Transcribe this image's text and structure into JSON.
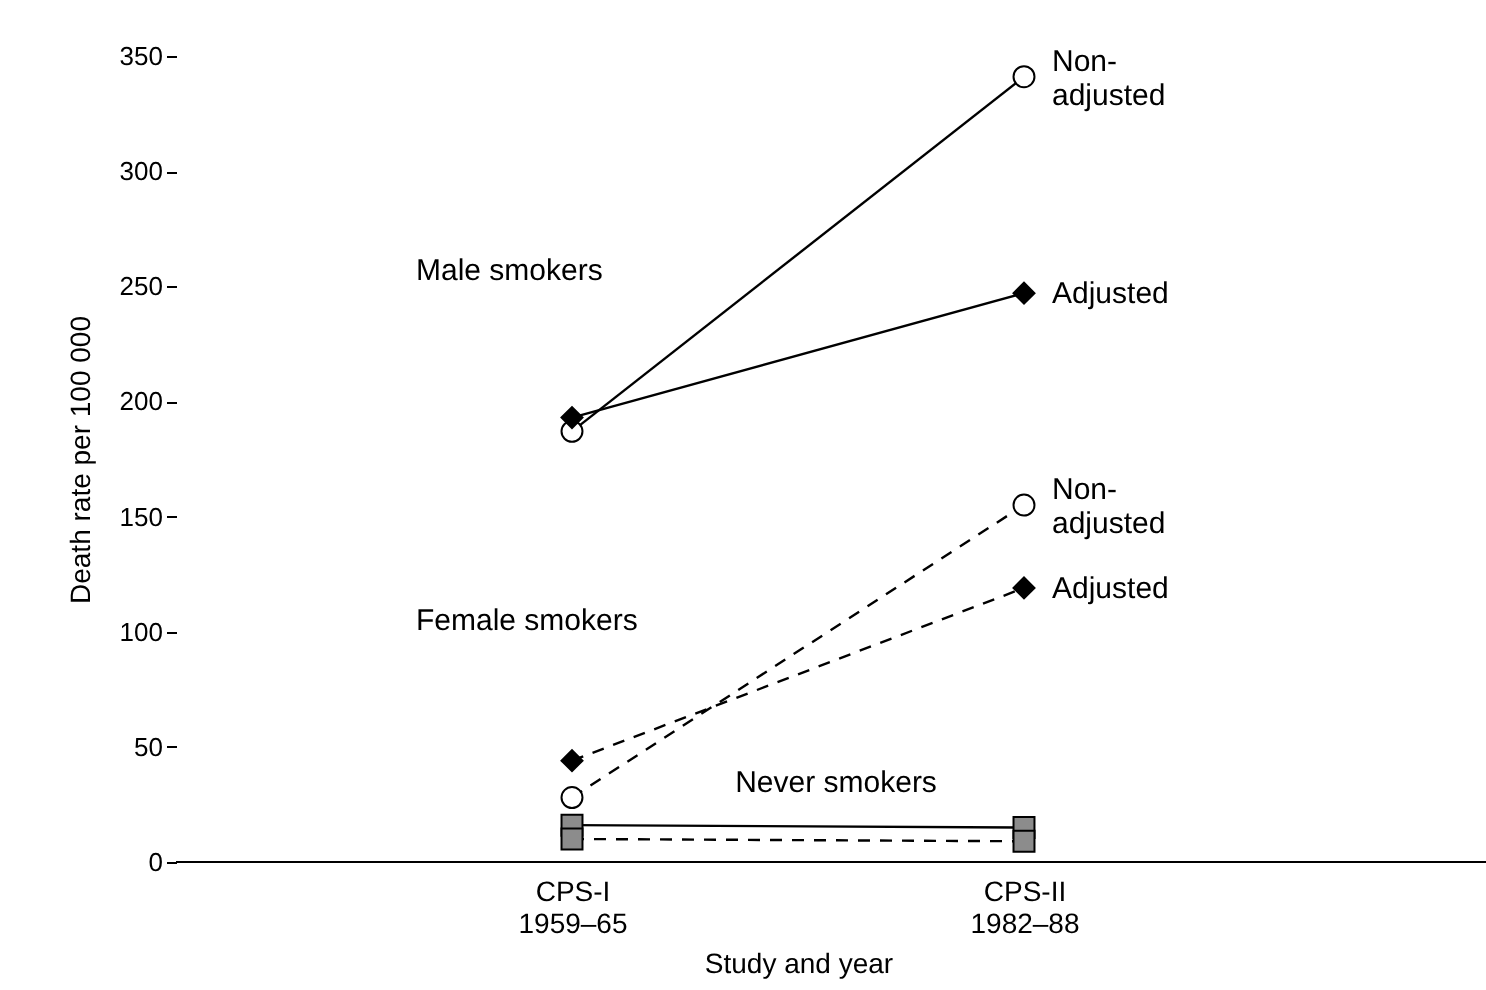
{
  "chart_data": {
    "type": "line",
    "xlabel": "Study and year",
    "ylabel": "Death rate per 100 000",
    "categories": [
      "CPS-I\n1959–65",
      "CPS-II\n1982–88"
    ],
    "series": [
      {
        "name": "Non-\nadjusted",
        "color": "#000000",
        "marker": "circle",
        "line_style": "solid",
        "values": [
          187,
          341
        ]
      },
      {
        "name": "Adjusted",
        "color": "#000000",
        "marker": "diamond",
        "line_style": "solid",
        "values": [
          193,
          247
        ]
      },
      {
        "name": "Non-\nadjusted",
        "color": "#000000",
        "marker": "circle",
        "line_style": "dashed",
        "values": [
          28,
          155
        ]
      },
      {
        "name": "Adjusted",
        "color": "#000000",
        "marker": "diamond",
        "line_style": "dashed",
        "values": [
          44,
          119
        ]
      },
      {
        "color": "#8c8c8c",
        "marker": "square",
        "line_style": "solid",
        "values": [
          16,
          15
        ]
      },
      {
        "color": "#8c8c8c",
        "marker": "square",
        "line_style": "dashed",
        "values": [
          10,
          9
        ]
      }
    ],
    "ylim": [
      0,
      350
    ],
    "yticks": [
      0,
      50,
      100,
      150,
      200,
      250,
      300,
      350
    ],
    "grid": false,
    "annotations": [
      "Male smokers",
      "Female smokers",
      "Never smokers"
    ]
  }
}
